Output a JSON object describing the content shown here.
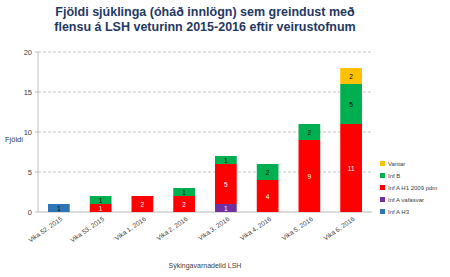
{
  "chart_data": {
    "type": "bar",
    "stacked": true,
    "data_labels": true,
    "grid": true,
    "legend": "right",
    "title": "Fjöldi sjúklinga (óháð innlögn) sem greindust með flensu á LSH veturinn 2015-2016 eftir veirustofnum",
    "y_label": "Fjöldi",
    "x_label": "Sýkingavarnadeild LSH",
    "categories": [
      "Vika 52, 2015",
      "Vika 53, 2015",
      "Vika 1, 2016",
      "Vika 2, 2016",
      "Vika 3, 2016",
      "Vika 4, 2016",
      "Vika 5, 2016",
      "Vika 6, 2016"
    ],
    "ylim": [
      0,
      20
    ],
    "yticks": [
      0,
      5,
      10,
      15,
      20
    ],
    "series": [
      {
        "name": "Inf A H3",
        "color": "#2e75b6",
        "values": [
          1,
          0,
          0,
          0,
          0,
          0,
          0,
          0
        ]
      },
      {
        "name": "Inf A vafasvar",
        "color": "#7030a0",
        "values": [
          0,
          0,
          0,
          0,
          1,
          0,
          0,
          0
        ]
      },
      {
        "name": "Inf A H1 2009 pdm",
        "color": "#ff0000",
        "values": [
          0,
          1,
          2,
          2,
          5,
          4,
          9,
          11
        ]
      },
      {
        "name": "Inf B",
        "color": "#00b050",
        "values": [
          0,
          1,
          0,
          1,
          1,
          2,
          2,
          5
        ]
      },
      {
        "name": "Vantar",
        "color": "#ffc000",
        "values": [
          0,
          0,
          0,
          0,
          0,
          0,
          0,
          2
        ]
      }
    ]
  }
}
